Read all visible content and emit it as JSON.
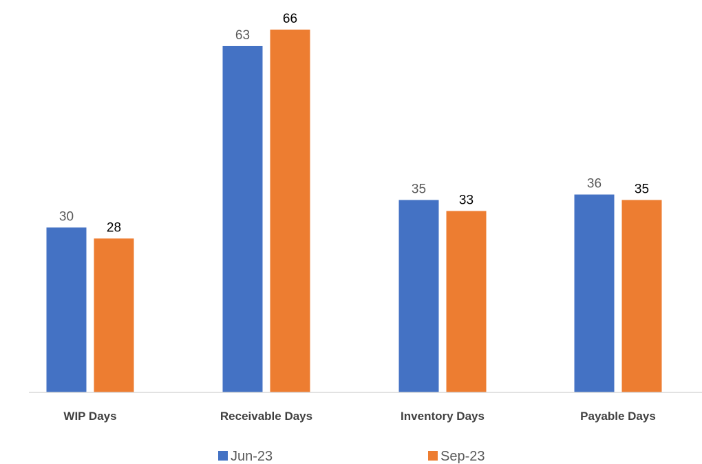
{
  "chart_data": {
    "type": "bar",
    "title": "",
    "xlabel": "",
    "ylabel": "",
    "categories": [
      "WIP Days",
      "Receivable Days",
      "Inventory Days",
      "Payable Days"
    ],
    "series": [
      {
        "name": "Jun-23",
        "values": [
          30,
          63,
          35,
          36
        ],
        "color": "#4472C4"
      },
      {
        "name": "Sep-23",
        "values": [
          28,
          66,
          33,
          35
        ],
        "color": "#ED7D31"
      }
    ],
    "ylim": [
      0,
      66
    ],
    "grid": false,
    "legend_position": "bottom"
  }
}
